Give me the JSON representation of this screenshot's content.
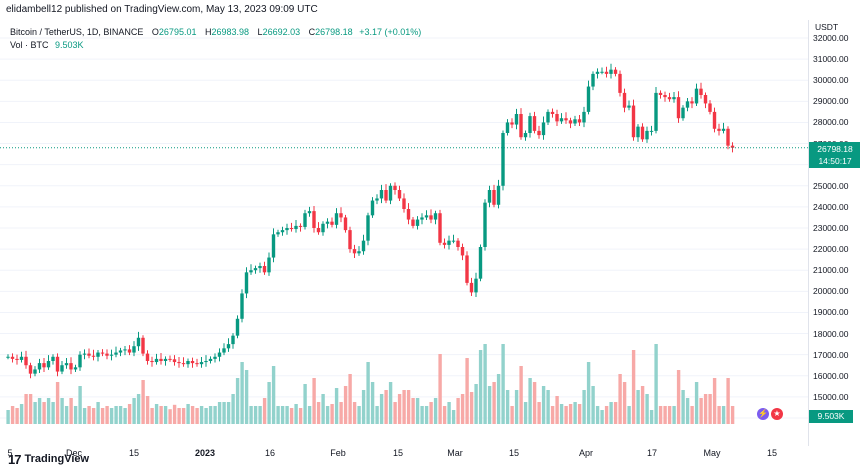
{
  "header": {
    "publish_line": "elidambell12 published on TradingView.com, May 13, 2023 09:09 UTC"
  },
  "legend": {
    "symbol": "Bitcoin / TetherUS, 1D, BINANCE",
    "ohlc": [
      {
        "key": "O",
        "value": "26795.01"
      },
      {
        "key": "H",
        "value": "26983.98"
      },
      {
        "key": "L",
        "value": "26692.03"
      },
      {
        "key": "C",
        "value": "26798.18"
      }
    ],
    "change": "+3.17 (+0.01%)",
    "volume_label": "Vol · BTC",
    "volume_value": "9.503K"
  },
  "price_axis": {
    "currency": "USDT",
    "labels": [
      "32000.00",
      "31000.00",
      "30000.00",
      "29000.00",
      "28000.00",
      "27000.00",
      "26000.00",
      "25000.00",
      "24000.00",
      "23000.00",
      "22000.00",
      "21000.00",
      "20000.00",
      "19000.00",
      "18000.00",
      "17000.00",
      "16000.00",
      "15000.00",
      "14000.00"
    ],
    "last_price": "26798.18",
    "countdown": "14:50:17",
    "last_volume": "9.503K"
  },
  "time_axis": {
    "labels": [
      "5",
      "Dec",
      "15",
      "2023",
      "16",
      "Feb",
      "15",
      "Mar",
      "15",
      "Apr",
      "17",
      "May",
      "15"
    ]
  },
  "footer": {
    "brand": "TradingView",
    "logo_glyph": "17"
  },
  "colors": {
    "up": "#089981",
    "down": "#f23645",
    "up_vol": "#92d2cc",
    "down_vol": "#f7a9a7"
  },
  "chart_data": {
    "type": "candlestick",
    "symbol": "BTCUSDT",
    "ylim": [
      14000,
      32000
    ],
    "approx_daily_closes_from": "2022-11-05",
    "closes": [
      16900,
      16800,
      16750,
      16900,
      16500,
      16100,
      16300,
      16600,
      16400,
      16700,
      16900,
      16200,
      16500,
      16600,
      16300,
      16400,
      17000,
      17050,
      16950,
      16900,
      17100,
      17050,
      16950,
      17000,
      17100,
      17200,
      17250,
      17100,
      17400,
      17800,
      17050,
      16700,
      16650,
      16800,
      16700,
      16800,
      16780,
      16650,
      16600,
      16550,
      16700,
      16600,
      16550,
      16650,
      16700,
      16800,
      16900,
      17100,
      17300,
      17500,
      17900,
      18700,
      19900,
      20900,
      21000,
      21100,
      21200,
      20900,
      21600,
      22700,
      22800,
      22900,
      23000,
      22950,
      23100,
      23050,
      23700,
      23800,
      23000,
      22800,
      23200,
      23300,
      23150,
      23700,
      23500,
      22900,
      22000,
      21800,
      21900,
      22400,
      23600,
      24300,
      24400,
      24800,
      24300,
      25000,
      24800,
      24400,
      23900,
      23400,
      23100,
      23400,
      23500,
      23600,
      23400,
      23700,
      22300,
      22200,
      22400,
      22400,
      22100,
      21700,
      20400,
      19950,
      20600,
      22100,
      24200,
      24800,
      24100,
      25000,
      27500,
      28000,
      27900,
      28400,
      27300,
      27500,
      28300,
      27600,
      27400,
      28000,
      28500,
      28400,
      28050,
      28200,
      28100,
      27950,
      28150,
      28000,
      28500,
      29700,
      30300,
      30400,
      30400,
      30300,
      30500,
      30300,
      29400,
      28700,
      28800,
      27300,
      27800,
      27200,
      27600,
      27600,
      29400,
      29300,
      29200,
      29100,
      29200,
      28200,
      28700,
      29000,
      28900,
      29600,
      29300,
      28900,
      28500,
      27700,
      27600,
      27700,
      26900,
      26800
    ]
  }
}
